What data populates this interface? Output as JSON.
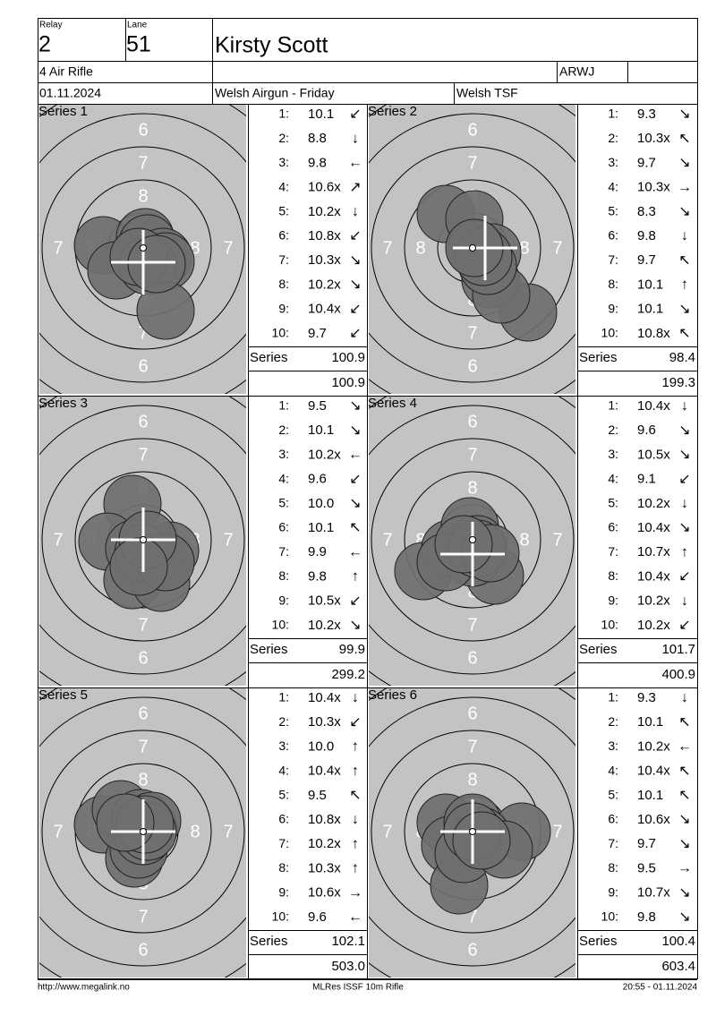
{
  "header": {
    "relay_label": "Relay",
    "relay": "2",
    "lane_label": "Lane",
    "lane": "51",
    "name": "Kirsty Scott",
    "event": "4 Air Rifle",
    "club": "ARWJ",
    "date": "01.11.2024",
    "match": "Welsh Airgun - Friday",
    "organizer": "Welsh TSF"
  },
  "target_rings": [
    "6",
    "7",
    "8"
  ],
  "series": [
    {
      "title": "Series 1",
      "label": "Series",
      "total": "100.9",
      "cumulative": "100.9",
      "shots": [
        {
          "n": "1:",
          "score": "10.1",
          "dir": "↙"
        },
        {
          "n": "2:",
          "score": "8.8",
          "dir": "↓"
        },
        {
          "n": "3:",
          "score": "9.8",
          "dir": "←"
        },
        {
          "n": "4:",
          "score": "10.6x",
          "dir": "↗"
        },
        {
          "n": "5:",
          "score": "10.2x",
          "dir": "↓"
        },
        {
          "n": "6:",
          "score": "10.8x",
          "dir": "↙"
        },
        {
          "n": "7:",
          "score": "10.3x",
          "dir": "↘"
        },
        {
          "n": "8:",
          "score": "10.2x",
          "dir": "↘"
        },
        {
          "n": "9:",
          "score": "10.4x",
          "dir": "↙"
        },
        {
          "n": "10:",
          "score": "9.7",
          "dir": "↙"
        }
      ]
    },
    {
      "title": "Series 2",
      "label": "Series",
      "total": "98.4",
      "cumulative": "199.3",
      "shots": [
        {
          "n": "1:",
          "score": "9.3",
          "dir": "↘"
        },
        {
          "n": "2:",
          "score": "10.3x",
          "dir": "↖"
        },
        {
          "n": "3:",
          "score": "9.7",
          "dir": "↘"
        },
        {
          "n": "4:",
          "score": "10.3x",
          "dir": "→"
        },
        {
          "n": "5:",
          "score": "8.3",
          "dir": "↘"
        },
        {
          "n": "6:",
          "score": "9.8",
          "dir": "↓"
        },
        {
          "n": "7:",
          "score": "9.7",
          "dir": "↖"
        },
        {
          "n": "8:",
          "score": "10.1",
          "dir": "↑"
        },
        {
          "n": "9:",
          "score": "10.1",
          "dir": "↘"
        },
        {
          "n": "10:",
          "score": "10.8x",
          "dir": "↖"
        }
      ]
    },
    {
      "title": "Series 3",
      "label": "Series",
      "total": "99.9",
      "cumulative": "299.2",
      "shots": [
        {
          "n": "1:",
          "score": "9.5",
          "dir": "↘"
        },
        {
          "n": "2:",
          "score": "10.1",
          "dir": "↘"
        },
        {
          "n": "3:",
          "score": "10.2x",
          "dir": "←"
        },
        {
          "n": "4:",
          "score": "9.6",
          "dir": "↙"
        },
        {
          "n": "5:",
          "score": "10.0",
          "dir": "↘"
        },
        {
          "n": "6:",
          "score": "10.1",
          "dir": "↖"
        },
        {
          "n": "7:",
          "score": "9.9",
          "dir": "←"
        },
        {
          "n": "8:",
          "score": "9.8",
          "dir": "↑"
        },
        {
          "n": "9:",
          "score": "10.5x",
          "dir": "↙"
        },
        {
          "n": "10:",
          "score": "10.2x",
          "dir": "↘"
        }
      ]
    },
    {
      "title": "Series 4",
      "label": "Series",
      "total": "101.7",
      "cumulative": "400.9",
      "shots": [
        {
          "n": "1:",
          "score": "10.4x",
          "dir": "↓"
        },
        {
          "n": "2:",
          "score": "9.6",
          "dir": "↘"
        },
        {
          "n": "3:",
          "score": "10.5x",
          "dir": "↘"
        },
        {
          "n": "4:",
          "score": "9.1",
          "dir": "↙"
        },
        {
          "n": "5:",
          "score": "10.2x",
          "dir": "↓"
        },
        {
          "n": "6:",
          "score": "10.4x",
          "dir": "↘"
        },
        {
          "n": "7:",
          "score": "10.7x",
          "dir": "↑"
        },
        {
          "n": "8:",
          "score": "10.4x",
          "dir": "↙"
        },
        {
          "n": "9:",
          "score": "10.2x",
          "dir": "↓"
        },
        {
          "n": "10:",
          "score": "10.2x",
          "dir": "↙"
        }
      ]
    },
    {
      "title": "Series 5",
      "label": "Series",
      "total": "102.1",
      "cumulative": "503.0",
      "shots": [
        {
          "n": "1:",
          "score": "10.4x",
          "dir": "↓"
        },
        {
          "n": "2:",
          "score": "10.3x",
          "dir": "↙"
        },
        {
          "n": "3:",
          "score": "10.0",
          "dir": "↑"
        },
        {
          "n": "4:",
          "score": "10.4x",
          "dir": "↑"
        },
        {
          "n": "5:",
          "score": "9.5",
          "dir": "↖"
        },
        {
          "n": "6:",
          "score": "10.8x",
          "dir": "↓"
        },
        {
          "n": "7:",
          "score": "10.2x",
          "dir": "↑"
        },
        {
          "n": "8:",
          "score": "10.3x",
          "dir": "↑"
        },
        {
          "n": "9:",
          "score": "10.6x",
          "dir": "→"
        },
        {
          "n": "10:",
          "score": "9.6",
          "dir": "←"
        }
      ]
    },
    {
      "title": "Series 6",
      "label": "Series",
      "total": "100.4",
      "cumulative": "603.4",
      "shots": [
        {
          "n": "1:",
          "score": "9.3",
          "dir": "↓"
        },
        {
          "n": "2:",
          "score": "10.1",
          "dir": "↖"
        },
        {
          "n": "3:",
          "score": "10.2x",
          "dir": "←"
        },
        {
          "n": "4:",
          "score": "10.4x",
          "dir": "↖"
        },
        {
          "n": "5:",
          "score": "10.1",
          "dir": "↖"
        },
        {
          "n": "6:",
          "score": "10.6x",
          "dir": "↘"
        },
        {
          "n": "7:",
          "score": "9.7",
          "dir": "↘"
        },
        {
          "n": "8:",
          "score": "9.5",
          "dir": "→"
        },
        {
          "n": "9:",
          "score": "10.7x",
          "dir": "↘"
        },
        {
          "n": "10:",
          "score": "9.8",
          "dir": "↘"
        }
      ]
    }
  ],
  "footer": {
    "url": "http://www.megalink.no",
    "software": "MLRes ISSF 10m Rifle",
    "timestamp": "20:55 - 01.11.2024"
  }
}
